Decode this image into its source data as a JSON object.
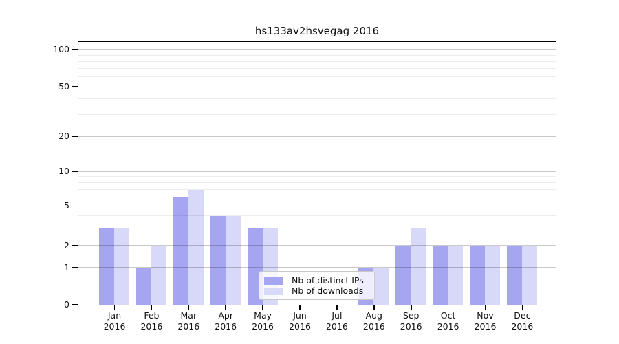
{
  "title": "hs133av2hsvegag 2016",
  "chart_data": {
    "type": "bar",
    "title": "hs133av2hsvegag 2016",
    "categories": [
      "Jan",
      "Feb",
      "Mar",
      "Apr",
      "May",
      "Jun",
      "Jul",
      "Aug",
      "Sep",
      "Oct",
      "Nov",
      "Dec"
    ],
    "year_label": "2016",
    "series": [
      {
        "name": "Nb of distinct IPs",
        "color": "#a5a5f2",
        "values": [
          3,
          1,
          6,
          4,
          3,
          0,
          0,
          1,
          2,
          2,
          2,
          2
        ]
      },
      {
        "name": "Nb of downloads",
        "color": "#d8d8f8",
        "values": [
          3,
          2,
          7,
          4,
          3,
          0,
          0,
          1,
          3,
          2,
          2,
          2
        ]
      }
    ],
    "yaxis": {
      "scale": "log-like-with-zero-baseline",
      "major_ticks": [
        0,
        1,
        2,
        5,
        10,
        20,
        50,
        100
      ],
      "minor_gridlines": [
        3,
        4,
        6,
        7,
        8,
        9,
        30,
        40,
        60,
        70,
        80,
        90
      ],
      "ylim": [
        0,
        115
      ]
    },
    "xlabel": "",
    "ylabel": "",
    "grid": "horizontal major+minor",
    "legend_position": "lower-center"
  }
}
